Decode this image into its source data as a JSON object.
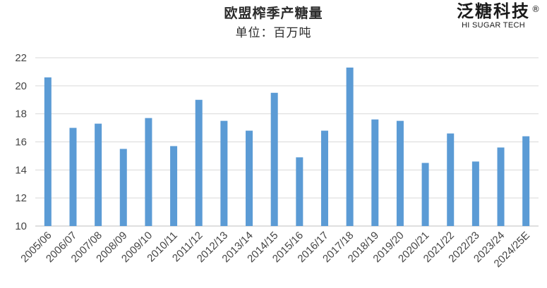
{
  "title": "欧盟榨季产糖量",
  "subtitle": "单位：百万吨",
  "logo": {
    "cn": "泛糖科技",
    "reg": "®",
    "en": "HI SUGAR TECH"
  },
  "colors": {
    "bar": "#5b9bd5",
    "grid": "#d9d9d9",
    "axis": "#bfbfbf"
  },
  "chart_data": {
    "type": "bar",
    "title": "欧盟榨季产糖量",
    "subtitle": "单位：百万吨",
    "categories": [
      "2005/06",
      "2006/07",
      "2007/08",
      "2008/09",
      "2009/10",
      "2010/11",
      "2011/12",
      "2012/13",
      "2013/14",
      "2014/15",
      "2015/16",
      "2016/17",
      "2017/18",
      "2018/19",
      "2019/20",
      "2020/21",
      "2021/22",
      "2022/23",
      "2023/24",
      "2024/25E"
    ],
    "values": [
      20.6,
      17.0,
      17.3,
      15.5,
      17.7,
      15.7,
      19.0,
      17.5,
      16.8,
      19.5,
      14.9,
      16.8,
      21.3,
      17.6,
      17.5,
      14.5,
      16.6,
      14.6,
      15.6,
      16.4
    ],
    "ylim": [
      10,
      22
    ],
    "yticks": [
      10,
      12,
      14,
      16,
      18,
      20,
      22
    ],
    "grid": true,
    "legend": "none"
  }
}
